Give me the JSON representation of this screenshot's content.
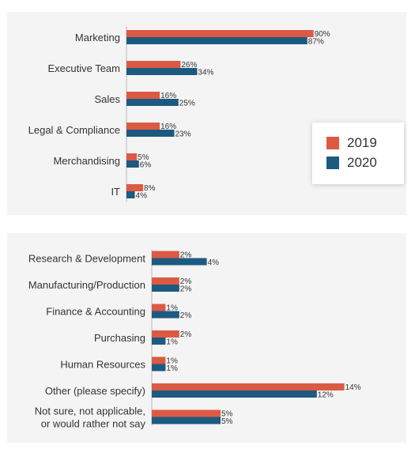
{
  "legend": [
    {
      "label": "2019",
      "color": "#dc5a44"
    },
    {
      "label": "2020",
      "color": "#1c5a80"
    }
  ],
  "chart_data": [
    {
      "type": "bar",
      "orientation": "horizontal",
      "categories": [
        "Marketing",
        "Executive Team",
        "Sales",
        "Legal & Compliance",
        "Merchandising",
        "IT"
      ],
      "series": [
        {
          "name": "2019",
          "values": [
            90,
            26,
            16,
            16,
            5,
            8
          ]
        },
        {
          "name": "2020",
          "values": [
            87,
            34,
            25,
            23,
            6,
            4
          ]
        }
      ],
      "value_labels": [
        [
          "90%",
          "26%",
          "16%",
          "16%",
          "5%",
          "8%"
        ],
        [
          "87%",
          "34%",
          "25%",
          "23%",
          "6%",
          "4%"
        ]
      ],
      "legend_position": "right"
    },
    {
      "type": "bar",
      "orientation": "horizontal",
      "categories": [
        "Research & Development",
        "Manufacturing/Production",
        "Finance & Accounting",
        "Purchasing",
        "Human Resources",
        "Other (please specify)",
        "Not sure, not applicable,\nor would rather not say"
      ],
      "series": [
        {
          "name": "2019",
          "values": [
            2,
            2,
            1,
            2,
            1,
            14,
            5
          ]
        },
        {
          "name": "2020",
          "values": [
            4,
            2,
            2,
            1,
            1,
            12,
            5
          ]
        }
      ],
      "value_labels": [
        [
          "2%",
          "2%",
          "1%",
          "2%",
          "1%",
          "14%",
          "5%"
        ],
        [
          "4%",
          "2%",
          "2%",
          "1%",
          "1%",
          "12%",
          "5%"
        ]
      ]
    }
  ]
}
